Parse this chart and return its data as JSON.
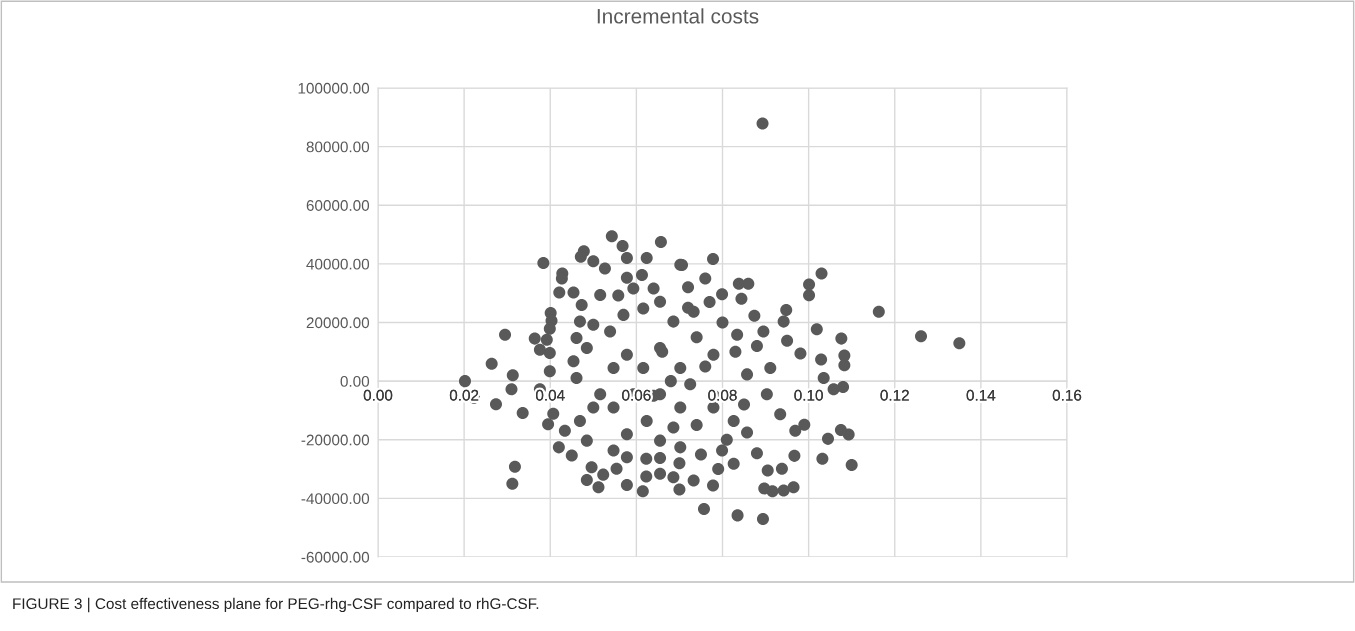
{
  "chart_data": {
    "type": "scatter",
    "title": "Incremental costs",
    "annotations": [
      "FIGURE 3 | Cost effectiveness plane for PEG-rhg-CSF compared to rhG-CSF."
    ],
    "xlim": [
      0,
      0.16
    ],
    "xticks": [
      {
        "value": 0,
        "label": "0.00"
      },
      {
        "value": 0.02,
        "label": "0.02"
      },
      {
        "value": 0.04,
        "label": "0.04"
      },
      {
        "value": 0.06,
        "label": "0.06"
      },
      {
        "value": 0.08,
        "label": "0.08"
      },
      {
        "value": 0.1,
        "label": "0.10"
      },
      {
        "value": 0.12,
        "label": "0.12"
      },
      {
        "value": 0.14,
        "label": "0.14"
      },
      {
        "value": 0.16,
        "label": "0.16"
      }
    ],
    "ylim": [
      -60000,
      100000
    ],
    "yticks": [
      {
        "value": -60000,
        "label": "-60000.00"
      },
      {
        "value": -40000,
        "label": "-40000.00"
      },
      {
        "value": -20000,
        "label": "-20000.00"
      },
      {
        "value": 0,
        "label": "0.00"
      },
      {
        "value": 20000,
        "label": "20000.00"
      },
      {
        "value": 40000,
        "label": "40000.00"
      },
      {
        "value": 60000,
        "label": "60000.00"
      },
      {
        "value": 80000,
        "label": "80000.00"
      },
      {
        "value": 100000,
        "label": "100000.00"
      }
    ],
    "grid": true,
    "marker": "circle",
    "series": [
      {
        "color": "#595959",
        "x": [
          0.0202,
          0.0223,
          0.0274,
          0.0264,
          0.0295,
          0.0313,
          0.031,
          0.0336,
          0.0318,
          0.0312,
          0.0364,
          0.0384,
          0.1163,
          0.1261,
          0.135,
          0.0893,
          0.0778,
          0.103,
          0.1001,
          0.1001,
          0.11,
          0.1032,
          0.1093,
          0.1075,
          0.1045,
          0.1083,
          0.1083,
          0.1076,
          0.108,
          0.1058,
          0.1035,
          0.1029,
          0.1019,
          0.0894,
          0.0835,
          0.0757,
          0.0778,
          0.0965,
          0.0942,
          0.0916,
          0.0897,
          0.0938,
          0.0967,
          0.095,
          0.0942,
          0.0948,
          0.086,
          0.0838,
          0.0844,
          0.0874,
          0.0981,
          0.099,
          0.0969,
          0.0905,
          0.088,
          0.0857,
          0.0826,
          0.0799,
          0.0733,
          0.0799,
          0.076,
          0.0702,
          0.0733,
          0.0834,
          0.0895,
          0.0911,
          0.0903,
          0.0934,
          0.0826,
          0.0779,
          0.0857,
          0.0779,
          0.0725,
          0.0543,
          0.0657,
          0.0568,
          0.0478,
          0.0471,
          0.0624,
          0.0578,
          0.05,
          0.0706,
          0.0527,
          0.0428,
          0.0427,
          0.0613,
          0.0578,
          0.0421,
          0.0454,
          0.0516,
          0.0558,
          0.0473,
          0.0593,
          0.064,
          0.0401,
          0.0403,
          0.0399,
          0.0392,
          0.0376,
          0.0399,
          0.0399,
          0.0376,
          0.0395,
          0.0407,
          0.0434,
          0.042,
          0.045,
          0.0485,
          0.0496,
          0.0512,
          0.0523,
          0.0554,
          0.0578,
          0.0615,
          0.0623,
          0.0623,
          0.0655,
          0.0655,
          0.07,
          0.0686,
          0.0578,
          0.0547,
          0.0485,
          0.05,
          0.0469,
          0.0516,
          0.0461,
          0.0454,
          0.0461,
          0.0485,
          0.0469,
          0.05,
          0.0539,
          0.057,
          0.0616,
          0.0655,
          0.0686,
          0.0578,
          0.0547,
          0.0616,
          0.0655,
          0.0702,
          0.0593,
          0.0655,
          0.0547,
          0.0624,
          0.0686,
          0.0578,
          0.0655,
          0.0702,
          0.0702,
          0.074,
          0.076,
          0.078,
          0.074,
          0.072,
          0.08,
          0.081,
          0.075,
          0.083,
          0.085,
          0.088,
          0.068,
          0.066,
          0.064,
          0.07,
          0.072,
          0.077,
          0.079
        ],
        "values": [
          0,
          -5700,
          -7900,
          5900,
          15800,
          2000,
          -2800,
          -10900,
          -29200,
          -35000,
          14500,
          40300,
          23700,
          15300,
          12900,
          87900,
          41700,
          36700,
          33000,
          29300,
          -28600,
          -26500,
          -18200,
          -16700,
          -19700,
          5400,
          8700,
          14500,
          -2000,
          -2800,
          1100,
          7400,
          17700,
          -47000,
          -45800,
          -43600,
          -35600,
          -36200,
          -37300,
          -37600,
          -36600,
          -29900,
          -25500,
          13800,
          20300,
          24300,
          33200,
          33200,
          28100,
          22300,
          9400,
          -14900,
          -16900,
          -30500,
          -24600,
          -17500,
          -28200,
          -23700,
          -33900,
          29600,
          35000,
          39700,
          23700,
          15800,
          16900,
          4500,
          -4500,
          -11300,
          -13600,
          -9000,
          2300,
          9000,
          -1100,
          49400,
          47500,
          46100,
          44300,
          42400,
          42000,
          42000,
          40900,
          39600,
          38400,
          36700,
          35000,
          36200,
          35300,
          30200,
          30200,
          29400,
          29200,
          26000,
          31600,
          31600,
          23200,
          20600,
          17900,
          14100,
          10700,
          9600,
          3400,
          -2800,
          -14700,
          -11100,
          -16900,
          -22600,
          -25400,
          -33700,
          -29400,
          -36200,
          -31900,
          -29900,
          -35400,
          -37600,
          -32500,
          -26500,
          -31600,
          -26200,
          -37000,
          -32800,
          -26000,
          -23700,
          -20300,
          -9000,
          -13600,
          -4500,
          1100,
          6800,
          14700,
          11300,
          20300,
          19200,
          16900,
          22600,
          24800,
          27100,
          20300,
          9000,
          4500,
          4500,
          11300,
          4500,
          -4500,
          -4500,
          -9000,
          -13600,
          -15800,
          -18100,
          -20300,
          -9000,
          -22600,
          15000,
          5000,
          -5000,
          -15000,
          25000,
          20000,
          -20000,
          -25000,
          10000,
          -8000,
          12000,
          0,
          10000,
          -5000,
          -28000,
          32000,
          27000,
          -30000
        ]
      }
    ]
  }
}
